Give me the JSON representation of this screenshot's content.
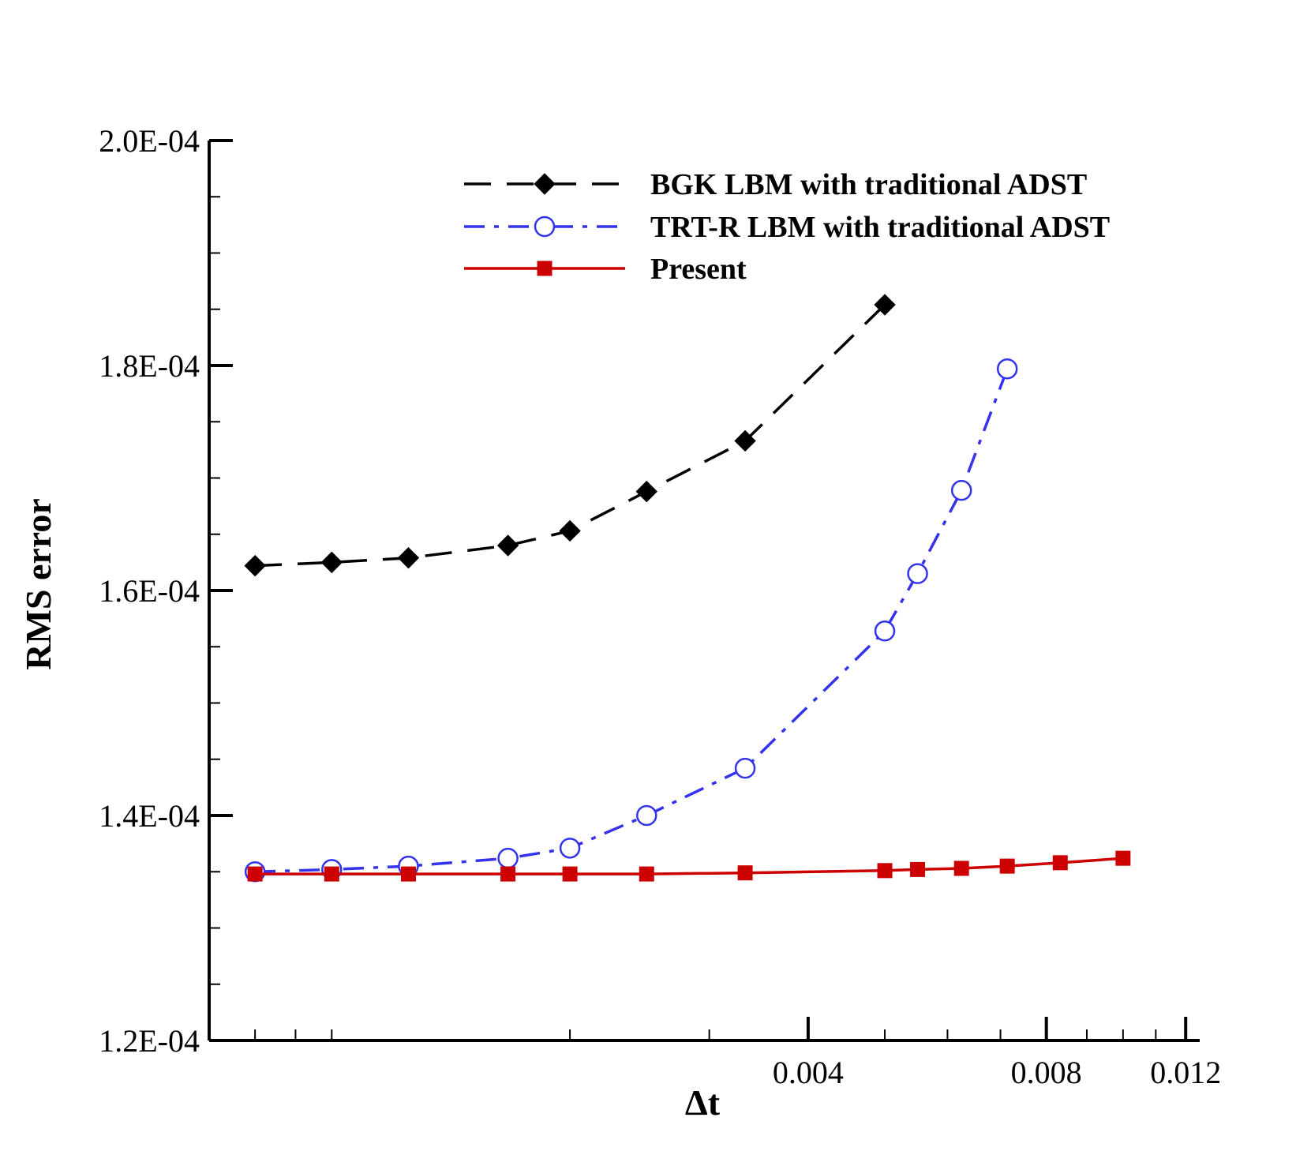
{
  "chart_data": {
    "type": "line",
    "title": "",
    "xlabel": "Δt",
    "ylabel": "RMS error",
    "xscale": "log",
    "xlim": [
      0.0007,
      0.0125
    ],
    "ylim": [
      0.00012,
      0.0002
    ],
    "x_tick_labels": [
      {
        "value": 0.004,
        "label": "0.004"
      },
      {
        "value": 0.008,
        "label": "0.008"
      },
      {
        "value": 0.012,
        "label": "0.012"
      }
    ],
    "y_tick_labels": [
      {
        "value": 0.00012,
        "label": "1.2E-04"
      },
      {
        "value": 0.00014,
        "label": "1.4E-04"
      },
      {
        "value": 0.00016,
        "label": "1.6E-04"
      },
      {
        "value": 0.00018,
        "label": "1.8E-04"
      },
      {
        "value": 0.0002,
        "label": "2.0E-04"
      }
    ],
    "legend_position": "top-right",
    "series": [
      {
        "name": "BGK LBM with traditional ADST",
        "color": "#000000",
        "line_style": "dashed",
        "marker": "diamond",
        "x": [
          0.0008,
          0.001,
          0.00125,
          0.00167,
          0.002,
          0.0025,
          0.00333,
          0.005
        ],
        "y": [
          0.0001622,
          0.0001625,
          0.0001629,
          0.000164,
          0.0001653,
          0.0001688,
          0.0001733,
          0.0001854
        ]
      },
      {
        "name": "TRT-R LBM with traditional ADST",
        "color": "#3333ee",
        "line_style": "dashdot",
        "marker": "open-circle",
        "x": [
          0.0008,
          0.001,
          0.00125,
          0.00167,
          0.002,
          0.0025,
          0.00333,
          0.005,
          0.0055,
          0.00625,
          0.00714
        ],
        "y": [
          0.000135,
          0.0001352,
          0.0001355,
          0.0001362,
          0.0001371,
          0.00014,
          0.0001442,
          0.0001564,
          0.0001615,
          0.0001689,
          0.0001797
        ]
      },
      {
        "name": "Present",
        "color": "#cc0000",
        "line_style": "solid",
        "marker": "filled-square",
        "x": [
          0.0008,
          0.001,
          0.00125,
          0.00167,
          0.002,
          0.0025,
          0.00333,
          0.005,
          0.0055,
          0.00625,
          0.00714,
          0.00833,
          0.01
        ],
        "y": [
          0.0001348,
          0.0001348,
          0.0001348,
          0.0001348,
          0.0001348,
          0.0001348,
          0.0001349,
          0.0001351,
          0.0001352,
          0.0001353,
          0.0001355,
          0.0001358,
          0.0001362
        ]
      }
    ]
  }
}
